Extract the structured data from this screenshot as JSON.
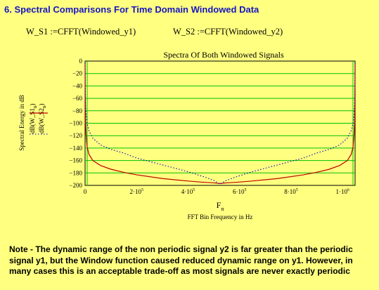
{
  "heading": "6. Spectral Comparisons For Time Domain Windowed Data",
  "definitions": [
    {
      "lhs": "W_S1",
      "op": ":=",
      "rhs": "CFFT(Windowed_y1)"
    },
    {
      "lhs": "W_S2",
      "op": ":=",
      "rhs": "CFFT(Windowed_y2)"
    }
  ],
  "note": "Note - The dynamic range of the non periodic signal y2 is far greater than the periodic signal y1, but the Window function caused reduced dynamic range on y1. However, in many cases this is an acceptable trade-off as most signals are never exactly periodic",
  "colors": {
    "background": "#FFFF80",
    "heading": "#1515C0",
    "series_1": "#C00000",
    "series_2": "#0000C0",
    "grid": "#00C000"
  },
  "chart_data": {
    "type": "line",
    "title": "Spectra Of Both Windowed Signals",
    "xlabel": "F_n",
    "xlabel_sub": "FFT Bin Frequency in Hz",
    "ylabel": "Spectral Energy in dB",
    "xlim": [
      0,
      1048576
    ],
    "ylim": [
      -200,
      0
    ],
    "x_ticks": [
      {
        "value": 0,
        "label": "0"
      },
      {
        "value": 200000,
        "label": "2·10^5"
      },
      {
        "value": 400000,
        "label": "4·10^5"
      },
      {
        "value": 600000,
        "label": "6·10^5"
      },
      {
        "value": 800000,
        "label": "8·10^5"
      },
      {
        "value": 1000000,
        "label": "1·10^6"
      }
    ],
    "y_ticks": [
      0,
      -20,
      -40,
      -60,
      -80,
      -100,
      -120,
      -140,
      -160,
      -180,
      -200
    ],
    "grid": true,
    "series": [
      {
        "name": "dB(W_S1_n)",
        "style": "solid",
        "x": [
          0,
          500,
          1000,
          2000,
          4000,
          8000,
          15000,
          30000,
          60000,
          100000,
          150000,
          200000,
          300000,
          400000,
          460000,
          500000,
          524288,
          548576,
          588576,
          648576,
          748576,
          848576,
          898576,
          948576,
          988576,
          1018576,
          1033576,
          1040576,
          1044576,
          1046576,
          1047576,
          1048076,
          1048576
        ],
        "y": [
          -3,
          -45,
          -70,
          -98,
          -120,
          -138,
          -150,
          -160,
          -168,
          -174,
          -179,
          -183,
          -189,
          -193,
          -195,
          -196,
          -197,
          -196,
          -195,
          -193,
          -189,
          -183,
          -179,
          -174,
          -168,
          -160,
          -150,
          -138,
          -120,
          -98,
          -70,
          -45,
          -3
        ]
      },
      {
        "name": "dB(W_S2_n)",
        "style": "dotted",
        "x": [
          0,
          500,
          1000,
          2000,
          4000,
          8000,
          15000,
          30000,
          60000,
          100000,
          150000,
          200000,
          300000,
          400000,
          460000,
          500000,
          524288,
          548576,
          588576,
          648576,
          748576,
          848576,
          898576,
          948576,
          988576,
          1018576,
          1033576,
          1040576,
          1044576,
          1046576,
          1047576,
          1048076,
          1048576
        ],
        "y": [
          -3,
          -40,
          -55,
          -70,
          -85,
          -100,
          -112,
          -124,
          -135,
          -142,
          -148,
          -156,
          -167,
          -178,
          -186,
          -192,
          -198,
          -192,
          -186,
          -178,
          -167,
          -156,
          -148,
          -142,
          -135,
          -124,
          -112,
          -100,
          -85,
          -70,
          -55,
          -40,
          -3
        ]
      }
    ]
  }
}
